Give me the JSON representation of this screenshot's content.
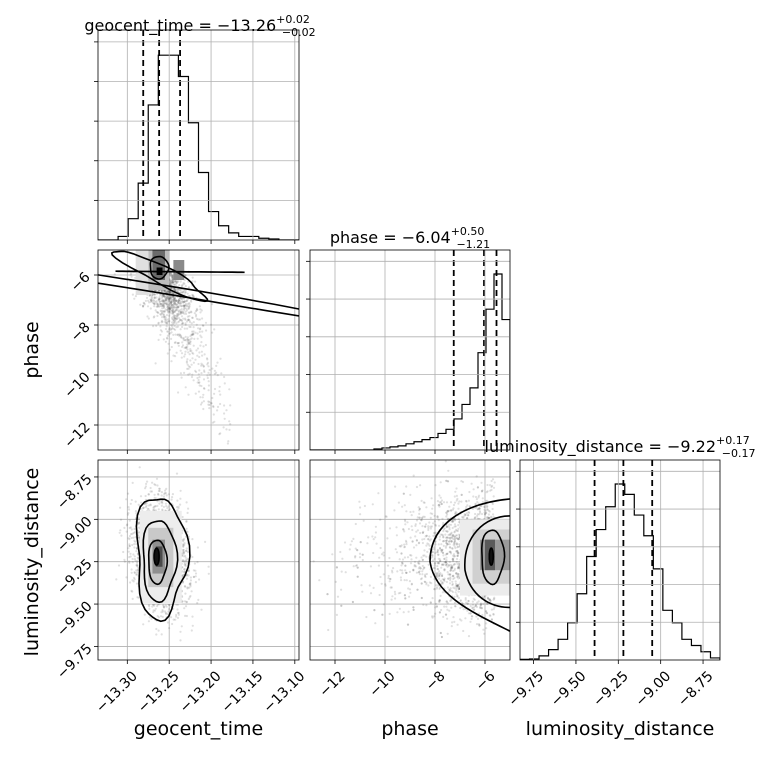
{
  "chart_data": {
    "type": "corner",
    "parameters": [
      "geocent_time",
      "phase",
      "luminosity_distance"
    ],
    "axis_labels": {
      "geocent_time": "geocent_time",
      "phase": "phase",
      "luminosity_distance": "luminosity_distance"
    },
    "ranges": {
      "geocent_time": [
        -13.335,
        -13.095
      ],
      "phase": [
        -13.0,
        -5.0
      ],
      "luminosity_distance": [
        -9.83,
        -8.65
      ]
    },
    "ticks": {
      "geocent_time": [
        "-13.30",
        "-13.25",
        "-13.20",
        "-13.15",
        "-13.10"
      ],
      "phase": [
        "-12",
        "-10",
        "-8",
        "-6"
      ],
      "luminosity_distance": [
        "-9.75",
        "-9.50",
        "-9.25",
        "-9.00",
        "-8.75"
      ]
    },
    "phase_y_ticks": [
      "-12",
      "-10",
      "-8",
      "-6"
    ],
    "titles": [
      {
        "param": "geocent_time",
        "name": "geocent_time",
        "median": "-13.26",
        "plus": "+0.02",
        "minus": "-0.02"
      },
      {
        "param": "phase",
        "name": "phase",
        "median": "-6.04",
        "plus": "+0.50",
        "minus": "-1.21"
      },
      {
        "param": "luminosity_distance",
        "name": "luminosity_distance",
        "median": "-9.22",
        "plus": "+0.17",
        "minus": "-0.17"
      }
    ],
    "quantiles": {
      "geocent_time": [
        -13.281,
        -13.262,
        -13.237
      ],
      "phase": [
        -7.25,
        -6.04,
        -5.54
      ],
      "luminosity_distance": [
        -9.39,
        -9.22,
        -9.05
      ]
    },
    "histograms": {
      "geocent_time": [
        0,
        0,
        1,
        6,
        16,
        38,
        52,
        52,
        46,
        33,
        19,
        8,
        4,
        2,
        1,
        1,
        0.5,
        0.3,
        0,
        0
      ],
      "phase": [
        0,
        0,
        0,
        0,
        0,
        0,
        0,
        0,
        0.5,
        1,
        1.5,
        2,
        3,
        4,
        5,
        6,
        8,
        10,
        15,
        22,
        30,
        47,
        68,
        85,
        63
      ],
      "luminosity_distance": [
        0.3,
        0.5,
        2,
        5,
        10,
        18,
        32,
        50,
        63,
        74,
        85,
        80,
        70,
        60,
        44,
        24,
        18,
        10,
        7,
        4,
        1
      ]
    },
    "grid": true
  }
}
